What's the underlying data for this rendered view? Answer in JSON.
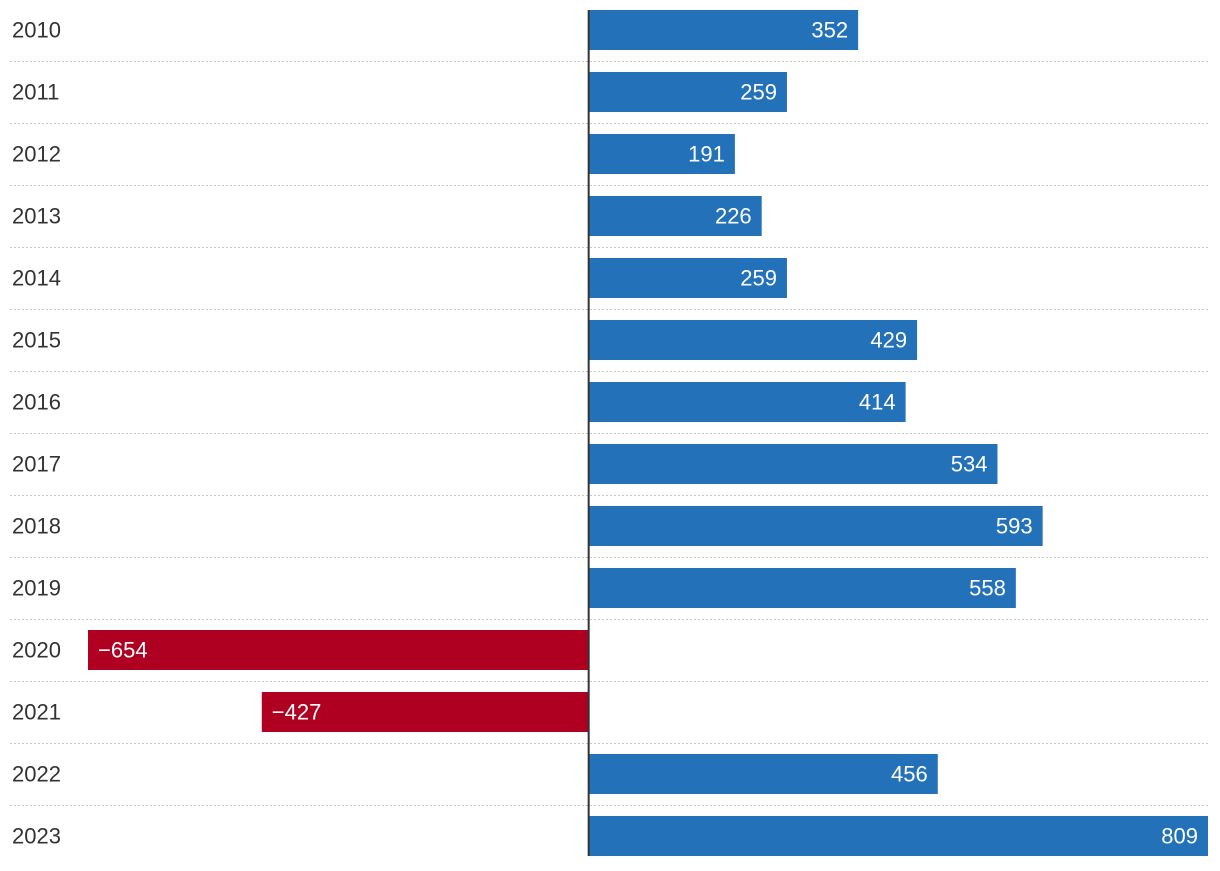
{
  "chart_data": {
    "type": "bar",
    "orientation": "horizontal",
    "categories": [
      "2010",
      "2011",
      "2012",
      "2013",
      "2014",
      "2015",
      "2016",
      "2017",
      "2018",
      "2019",
      "2020",
      "2021",
      "2022",
      "2023"
    ],
    "values": [
      352,
      259,
      191,
      226,
      259,
      429,
      414,
      534,
      593,
      558,
      -654,
      -427,
      456,
      809
    ],
    "value_labels": [
      "352",
      "259",
      "191",
      "226",
      "259",
      "429",
      "414",
      "534",
      "593",
      "558",
      "−654",
      "−427",
      "456",
      "809"
    ],
    "xlim": [
      -654,
      809
    ],
    "grid": "dotted horizontal separators",
    "colors": {
      "positive": "#2271b9",
      "negative": "#af0021",
      "axis": "#333333",
      "grid": "#c8c8c8",
      "category_text": "#333333",
      "label_text": "#ffffff"
    }
  }
}
